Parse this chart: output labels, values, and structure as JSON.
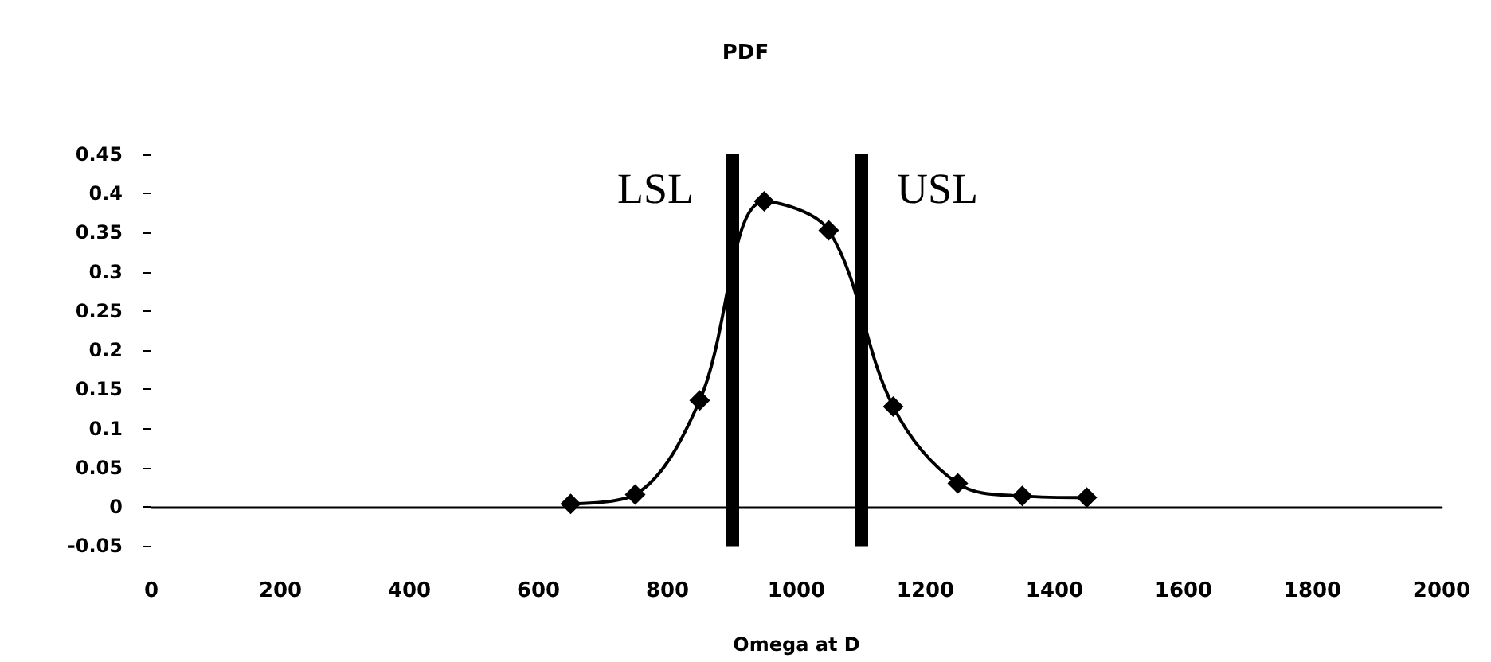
{
  "chart_data": {
    "type": "line",
    "title": "PDF",
    "xlabel": "Omega at D",
    "x": [
      650,
      750,
      850,
      950,
      1050,
      1150,
      1250,
      1350,
      1450
    ],
    "series": [
      {
        "color": "#000000",
        "values": [
          0.004,
          0.016,
          0.136,
          0.39,
          0.353,
          0.128,
          0.03,
          0.014,
          0.012
        ]
      }
    ],
    "xlim": [
      0,
      2000
    ],
    "xticks": [
      0,
      200,
      400,
      600,
      800,
      1000,
      1200,
      1400,
      1600,
      1800,
      2000
    ],
    "ylim": [
      -0.05,
      0.45
    ],
    "yticks": [
      -0.05,
      0,
      0.05,
      0.1,
      0.15,
      0.2,
      0.25,
      0.3,
      0.35,
      0.4,
      0.45
    ],
    "ref_lines": [
      {
        "axis": "x",
        "value": 900,
        "label": "LSL",
        "color": "#000000"
      },
      {
        "axis": "x",
        "value": 1100,
        "label": "USL",
        "color": "#000000"
      }
    ],
    "marker": "diamond",
    "line_style": "solid"
  }
}
